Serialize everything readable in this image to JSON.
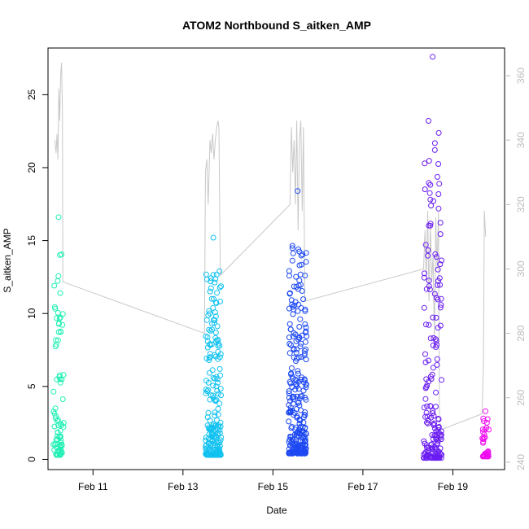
{
  "chart_data": {
    "type": "scatter",
    "title": "ATOM2 Northbound S_aitken_AMP",
    "xlabel": "Date",
    "ylabel": "S_aitken_AMP",
    "x_axis": {
      "unit": "days (Feb)",
      "range": [
        10.0,
        20.15
      ],
      "ticks": [
        11,
        13,
        15,
        17,
        19
      ],
      "tick_labels": [
        "Feb 11",
        "Feb 13",
        "Feb 15",
        "Feb 17",
        "Feb 19"
      ]
    },
    "y_axis_left": {
      "range": [
        -0.7,
        28.2
      ],
      "ticks": [
        0,
        5,
        10,
        15,
        20,
        25
      ],
      "tick_labels": [
        "0",
        "5",
        "10",
        "15",
        "20",
        "25"
      ]
    },
    "y_axis_right": {
      "color": "#bdbdbd",
      "range": [
        237.7,
        368.6
      ],
      "ticks": [
        240,
        260,
        280,
        300,
        320,
        340,
        360
      ],
      "tick_labels": [
        "240",
        "260",
        "280",
        "300",
        "320",
        "340",
        "360"
      ]
    },
    "secondary_line_color": "#c8c8c8",
    "scatter_series": [
      {
        "color": "#1ef0b4",
        "x_range": [
          10.12,
          10.35
        ],
        "y_min": 0.3,
        "y_max": 16.6,
        "count": 80
      },
      {
        "color": "#11c2f0",
        "x_range": [
          13.5,
          13.85
        ],
        "y_min": 0.3,
        "y_max": 15.2,
        "count": 220
      },
      {
        "color": "#1d48f2",
        "x_range": [
          15.35,
          15.75
        ],
        "y_min": 0.4,
        "y_max": 18.4,
        "count": 280
      },
      {
        "color": "#6a1cf2",
        "x_range": [
          18.35,
          18.75
        ],
        "y_min": 0.1,
        "y_max": 27.6,
        "count": 180
      },
      {
        "color": "#f00cf0",
        "x_range": [
          19.65,
          19.8
        ],
        "y_min": 0.2,
        "y_max": 3.3,
        "count": 40
      }
    ],
    "line_series": [
      [
        10.15,
        340
      ],
      [
        10.18,
        336
      ],
      [
        10.2,
        342
      ],
      [
        10.22,
        334
      ],
      [
        10.24,
        356
      ],
      [
        10.26,
        346
      ],
      [
        10.28,
        360
      ],
      [
        10.3,
        364
      ],
      [
        10.32,
        350
      ],
      [
        10.33,
        296
      ],
      [
        13.48,
        280
      ],
      [
        13.5,
        330
      ],
      [
        13.53,
        334
      ],
      [
        13.56,
        320
      ],
      [
        13.6,
        340
      ],
      [
        13.63,
        336
      ],
      [
        13.66,
        342
      ],
      [
        13.69,
        334
      ],
      [
        13.72,
        340
      ],
      [
        13.75,
        344
      ],
      [
        13.78,
        346
      ],
      [
        13.8,
        344
      ],
      [
        13.83,
        298
      ],
      [
        15.38,
        320
      ],
      [
        15.41,
        344
      ],
      [
        15.44,
        330
      ],
      [
        15.47,
        340
      ],
      [
        15.5,
        320
      ],
      [
        15.53,
        346
      ],
      [
        15.56,
        312
      ],
      [
        15.59,
        340
      ],
      [
        15.62,
        346
      ],
      [
        15.65,
        318
      ],
      [
        15.68,
        344
      ],
      [
        15.71,
        290
      ],
      [
        18.35,
        300
      ],
      [
        18.38,
        312
      ],
      [
        18.41,
        296
      ],
      [
        18.44,
        318
      ],
      [
        18.47,
        290
      ],
      [
        18.5,
        314
      ],
      [
        18.53,
        296
      ],
      [
        18.56,
        304
      ],
      [
        18.59,
        278
      ],
      [
        18.62,
        316
      ],
      [
        18.65,
        300
      ],
      [
        18.68,
        318
      ],
      [
        18.7,
        256
      ],
      [
        18.72,
        250
      ],
      [
        19.65,
        255
      ],
      [
        19.68,
        270
      ],
      [
        19.7,
        318
      ],
      [
        19.73,
        310
      ]
    ]
  }
}
